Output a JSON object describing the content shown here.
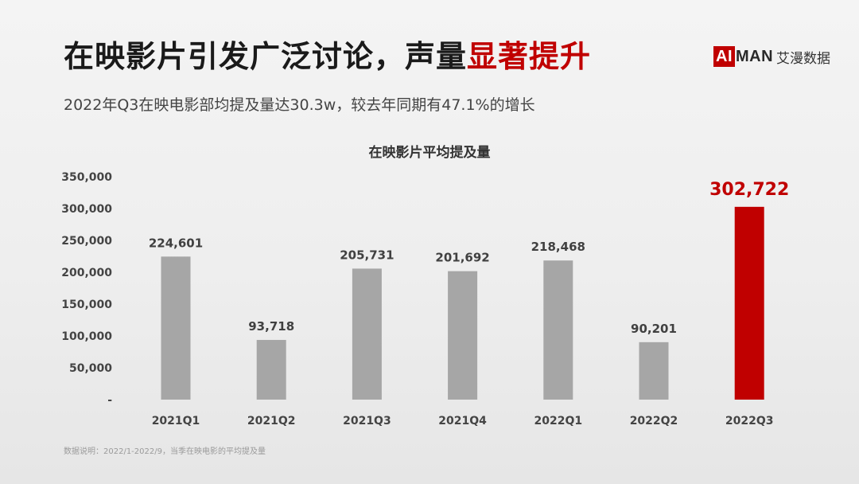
{
  "header": {
    "title_main": "在映影片引发广泛讨论，声量",
    "title_highlight": "显著提升",
    "subtitle": "2022年Q3在映电影部均提及量达30.3w，较去年同期有47.1%的增长"
  },
  "logo": {
    "box_text": "AI",
    "text": "MAN",
    "cn": "艾漫数据"
  },
  "footnote": "数据说明：2022/1-2022/9，当季在映电影的平均提及量",
  "colors": {
    "bar": "#a6a6a6",
    "highlight": "#c00000",
    "text": "#333333"
  },
  "chart_data": {
    "type": "bar",
    "title": "在映影片平均提及量",
    "categories": [
      "2021Q1",
      "2021Q2",
      "2021Q3",
      "2021Q4",
      "2022Q1",
      "2022Q2",
      "2022Q3"
    ],
    "values": [
      224601,
      93718,
      205731,
      201692,
      218468,
      90201,
      302722
    ],
    "value_labels": [
      "224,601",
      "93,718",
      "205,731",
      "201,692",
      "218,468",
      "90,201",
      "302,722"
    ],
    "highlight_index": 6,
    "ylim": [
      0,
      350000
    ],
    "yticks": [
      0,
      50000,
      100000,
      150000,
      200000,
      250000,
      300000,
      350000
    ],
    "ytick_labels": [
      "-",
      "50,000",
      "100,000",
      "150,000",
      "200,000",
      "250,000",
      "300,000",
      "350,000"
    ],
    "grid": false,
    "legend": "none"
  }
}
